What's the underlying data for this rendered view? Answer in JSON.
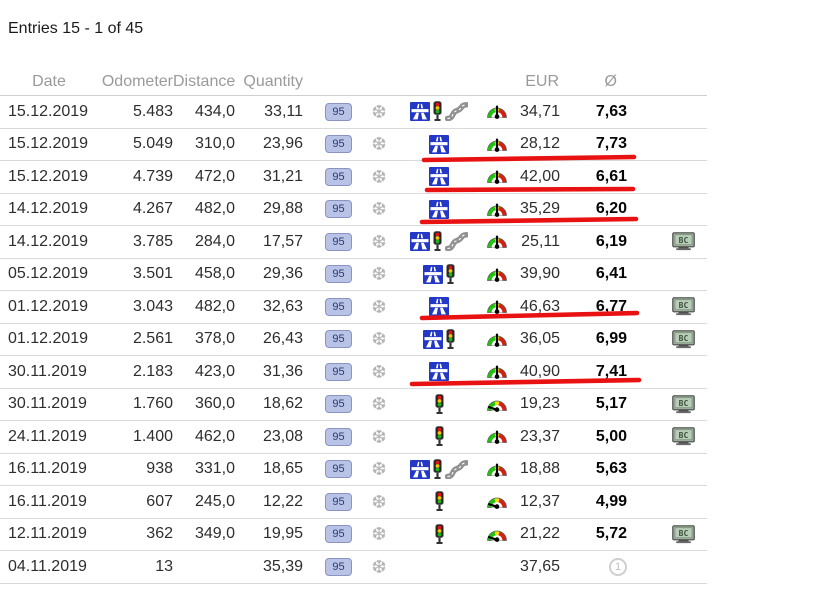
{
  "page": {
    "title": "Entries 15 - 1 of 45"
  },
  "table": {
    "headers": {
      "date": "Date",
      "odometer": "Odometer",
      "distance": "Distance",
      "quantity": "Quantity",
      "eur": "EUR",
      "avg": "Ø"
    },
    "rows": [
      {
        "date": "15.12.2019",
        "odometer": "5.483",
        "distance": "434,0",
        "quantity": "33,11",
        "fuel": "95",
        "winter": true,
        "roads": [
          "motorway",
          "traffic-light",
          "curvy-road"
        ],
        "gauge": "up",
        "eur": "34,71",
        "avg": "7,63",
        "bc": false,
        "first_entry": false,
        "red_underline": false
      },
      {
        "date": "15.12.2019",
        "odometer": "5.049",
        "distance": "310,0",
        "quantity": "23,96",
        "fuel": "95",
        "winter": true,
        "roads": [
          "motorway"
        ],
        "gauge": "up",
        "eur": "28,12",
        "avg": "7,73",
        "bc": false,
        "first_entry": false,
        "red_underline": true
      },
      {
        "date": "15.12.2019",
        "odometer": "4.739",
        "distance": "472,0",
        "quantity": "31,21",
        "fuel": "95",
        "winter": true,
        "roads": [
          "motorway"
        ],
        "gauge": "up",
        "eur": "42,00",
        "avg": "6,61",
        "bc": false,
        "first_entry": false,
        "red_underline": true
      },
      {
        "date": "14.12.2019",
        "odometer": "4.267",
        "distance": "482,0",
        "quantity": "29,88",
        "fuel": "95",
        "winter": true,
        "roads": [
          "motorway"
        ],
        "gauge": "up",
        "eur": "35,29",
        "avg": "6,20",
        "bc": false,
        "first_entry": false,
        "red_underline": true
      },
      {
        "date": "14.12.2019",
        "odometer": "3.785",
        "distance": "284,0",
        "quantity": "17,57",
        "fuel": "95",
        "winter": true,
        "roads": [
          "motorway",
          "traffic-light",
          "curvy-road"
        ],
        "gauge": "up",
        "eur": "25,11",
        "avg": "6,19",
        "bc": true,
        "first_entry": false,
        "red_underline": false
      },
      {
        "date": "05.12.2019",
        "odometer": "3.501",
        "distance": "458,0",
        "quantity": "29,36",
        "fuel": "95",
        "winter": true,
        "roads": [
          "motorway",
          "traffic-light"
        ],
        "gauge": "up",
        "eur": "39,90",
        "avg": "6,41",
        "bc": false,
        "first_entry": false,
        "red_underline": false
      },
      {
        "date": "01.12.2019",
        "odometer": "3.043",
        "distance": "482,0",
        "quantity": "32,63",
        "fuel": "95",
        "winter": true,
        "roads": [
          "motorway"
        ],
        "gauge": "up",
        "eur": "46,63",
        "avg": "6,77",
        "bc": true,
        "first_entry": false,
        "red_underline": true
      },
      {
        "date": "01.12.2019",
        "odometer": "2.561",
        "distance": "378,0",
        "quantity": "26,43",
        "fuel": "95",
        "winter": true,
        "roads": [
          "motorway",
          "traffic-light"
        ],
        "gauge": "up",
        "eur": "36,05",
        "avg": "6,99",
        "bc": true,
        "first_entry": false,
        "red_underline": false
      },
      {
        "date": "30.11.2019",
        "odometer": "2.183",
        "distance": "423,0",
        "quantity": "31,36",
        "fuel": "95",
        "winter": true,
        "roads": [
          "motorway"
        ],
        "gauge": "up",
        "eur": "40,90",
        "avg": "7,41",
        "bc": false,
        "first_entry": false,
        "red_underline": true
      },
      {
        "date": "30.11.2019",
        "odometer": "1.760",
        "distance": "360,0",
        "quantity": "18,62",
        "fuel": "95",
        "winter": true,
        "roads": [
          "traffic-light"
        ],
        "gauge": "left",
        "eur": "19,23",
        "avg": "5,17",
        "bc": true,
        "first_entry": false,
        "red_underline": false
      },
      {
        "date": "24.11.2019",
        "odometer": "1.400",
        "distance": "462,0",
        "quantity": "23,08",
        "fuel": "95",
        "winter": true,
        "roads": [
          "traffic-light"
        ],
        "gauge": "up",
        "eur": "23,37",
        "avg": "5,00",
        "bc": true,
        "first_entry": false,
        "red_underline": false
      },
      {
        "date": "16.11.2019",
        "odometer": "938",
        "distance": "331,0",
        "quantity": "18,65",
        "fuel": "95",
        "winter": true,
        "roads": [
          "motorway",
          "traffic-light",
          "curvy-road"
        ],
        "gauge": "up",
        "eur": "18,88",
        "avg": "5,63",
        "bc": false,
        "first_entry": false,
        "red_underline": false
      },
      {
        "date": "16.11.2019",
        "odometer": "607",
        "distance": "245,0",
        "quantity": "12,22",
        "fuel": "95",
        "winter": true,
        "roads": [
          "traffic-light"
        ],
        "gauge": "left",
        "eur": "12,37",
        "avg": "4,99",
        "bc": false,
        "first_entry": false,
        "red_underline": false
      },
      {
        "date": "12.11.2019",
        "odometer": "362",
        "distance": "349,0",
        "quantity": "19,95",
        "fuel": "95",
        "winter": true,
        "roads": [
          "traffic-light"
        ],
        "gauge": "left",
        "eur": "21,22",
        "avg": "5,72",
        "bc": true,
        "first_entry": false,
        "red_underline": false
      },
      {
        "date": "04.11.2019",
        "odometer": "13",
        "distance": "",
        "quantity": "35,39",
        "fuel": "95",
        "winter": true,
        "roads": [],
        "gauge": "",
        "eur": "37,65",
        "avg": "",
        "bc": false,
        "first_entry": true,
        "red_underline": false
      }
    ]
  },
  "labels": {
    "bc_monitor": "BC",
    "first_entry": "1"
  },
  "annotations": {
    "color": "#e81212",
    "red_strokes": [
      [
        424,
        160,
        634,
        157
      ],
      [
        427,
        190,
        633,
        189
      ],
      [
        422,
        222,
        636,
        219
      ],
      [
        422,
        318,
        637,
        313
      ],
      [
        412,
        384,
        639,
        380
      ]
    ]
  },
  "colors": {
    "fuel_badge_bg": "#b9c3e6",
    "fuel_badge_border": "#8a94c4",
    "fuel_badge_text": "#2c3a74",
    "motorway_blue": "#2438c8",
    "gauge_green": "#1fc40c",
    "gauge_yellow": "#f2e400",
    "gauge_red": "#d42010",
    "monitor_screen": "#b7cdb7",
    "snowflake_grey": "#b3b3b3"
  }
}
